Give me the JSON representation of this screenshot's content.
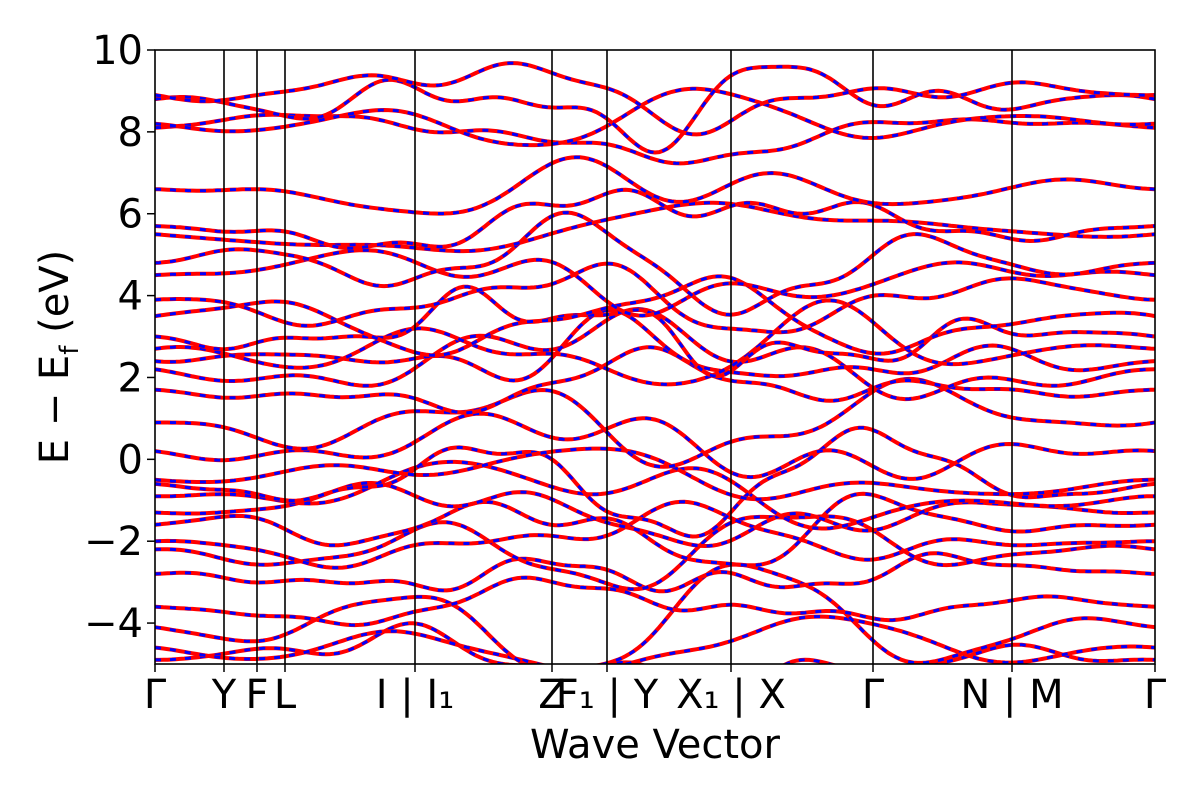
{
  "chart_data": {
    "type": "line",
    "title": "",
    "xlabel": "Wave Vector",
    "ylabel": "E − E_f (eV)",
    "ylabel_parts": {
      "main": "E  −  E",
      "sub": "f",
      "unit": " (eV)"
    },
    "ylim": [
      -5,
      10
    ],
    "xlim": [
      0,
      1
    ],
    "yticks": [
      -4,
      -2,
      0,
      2,
      4,
      6,
      8,
      10
    ],
    "ytick_labels": [
      "−4",
      "−2",
      "0",
      "2",
      "4",
      "6",
      "8",
      "10"
    ],
    "grid": false,
    "legend": "none",
    "x_ticks": [
      {
        "pos": 0.0,
        "label": "Γ"
      },
      {
        "pos": 0.069,
        "label": "Y"
      },
      {
        "pos": 0.102,
        "label": "F"
      },
      {
        "pos": 0.13,
        "label": "L"
      },
      {
        "pos": 0.26,
        "label": "I | I₁"
      },
      {
        "pos": 0.397,
        "label": "Z"
      },
      {
        "pos": 0.452,
        "label": "F₁ | Y"
      },
      {
        "pos": 0.576,
        "label": "X₁ | X"
      },
      {
        "pos": 0.718,
        "label": "Γ"
      },
      {
        "pos": 0.857,
        "label": "N | M"
      },
      {
        "pos": 1.0,
        "label": "Γ"
      }
    ],
    "series": [
      {
        "color": "#ff0000",
        "style": "solid"
      },
      {
        "color": "#0000ff",
        "style": "dashed"
      }
    ],
    "band_endpoints_at_gamma": [
      -4.9,
      -4.6,
      -4.1,
      -3.6,
      -2.8,
      -2.2,
      -2.0,
      -1.6,
      -1.3,
      -0.9,
      -0.6,
      -0.5,
      0.2,
      0.9,
      1.7,
      2.2,
      2.4,
      2.7,
      3.0,
      3.5,
      3.9,
      4.5,
      4.8,
      5.5,
      5.7,
      6.6,
      8.1,
      8.2,
      8.8,
      8.9
    ]
  }
}
